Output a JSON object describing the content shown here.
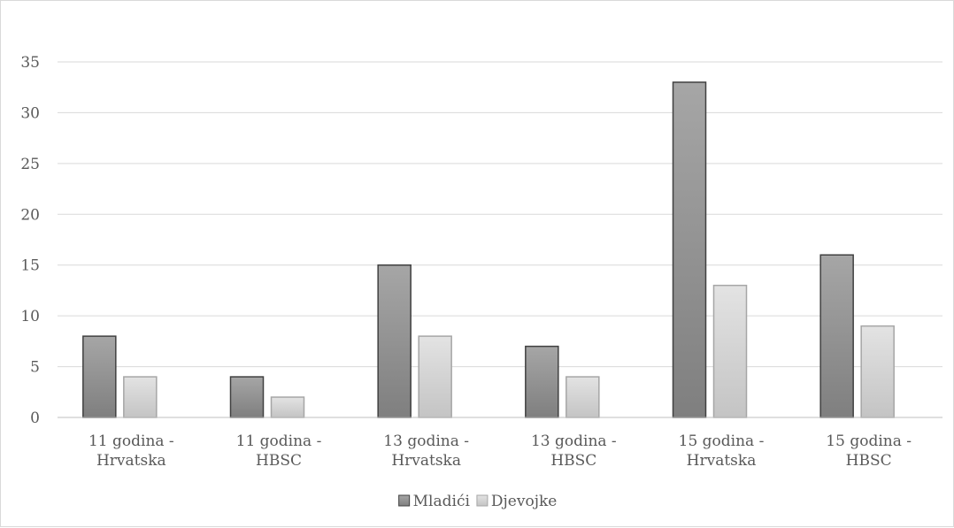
{
  "chart_data": {
    "type": "bar",
    "categories": [
      [
        "11 godina -",
        "Hrvatska"
      ],
      [
        "11 godina -",
        "HBSC"
      ],
      [
        "13 godina -",
        "Hrvatska"
      ],
      [
        "13 godina -",
        "HBSC"
      ],
      [
        "15 godina -",
        "Hrvatska"
      ],
      [
        "15 godina -",
        "HBSC"
      ]
    ],
    "series": [
      {
        "name": "Mladići",
        "values": [
          8,
          4,
          15,
          7,
          33,
          16
        ],
        "color_top": "#a6a6a6",
        "color_bottom": "#7f7f7f",
        "stroke": "#404040"
      },
      {
        "name": "Djevojke",
        "values": [
          4,
          2,
          8,
          4,
          13,
          9
        ],
        "color_top": "#e3e3e3",
        "color_bottom": "#c4c4c4",
        "stroke": "#a6a6a6"
      }
    ],
    "title": "",
    "xlabel": "",
    "ylabel": "",
    "ylim": [
      0,
      35
    ],
    "yticks": [
      0,
      5,
      10,
      15,
      20,
      25,
      30,
      35
    ],
    "grid": true,
    "legend_position": "bottom"
  }
}
